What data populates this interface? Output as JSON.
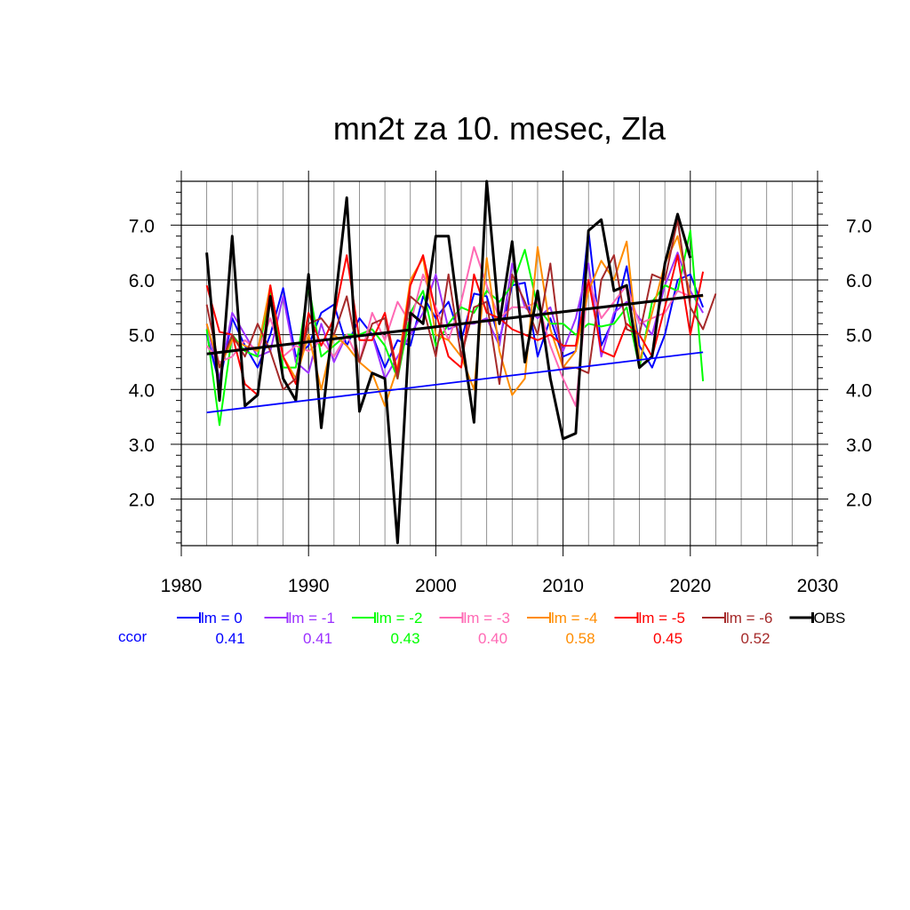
{
  "chart_data": {
    "type": "line",
    "title": "mn2t za 10. mesec, Zla",
    "xlabel": "",
    "ylabel": "",
    "xlim": [
      1980,
      2030
    ],
    "ylim": [
      1.15,
      7.8
    ],
    "xticks": [
      1980,
      1990,
      2000,
      2010,
      2020,
      2030
    ],
    "xtick_labels": [
      "1980",
      "1990",
      "2000",
      "2010",
      "2020",
      "2030"
    ],
    "yticks": [
      2,
      3,
      4,
      5,
      6,
      7
    ],
    "ytick_labels": [
      "2.0",
      "3.0",
      "4.0",
      "5.0",
      "6.0",
      "7.0"
    ],
    "grid": true,
    "ccor_label": "ccor",
    "series": [
      {
        "name": "lm = 0",
        "color": "#0000ff",
        "ccor": "0.41",
        "start": 1982,
        "values": [
          5.0,
          4.1,
          5.3,
          4.8,
          4.4,
          5.0,
          5.85,
          4.6,
          4.8,
          5.4,
          5.55,
          4.8,
          5.3,
          5.0,
          4.4,
          4.9,
          4.8,
          5.7,
          5.3,
          5.6,
          4.9,
          5.75,
          5.7,
          4.9,
          5.9,
          5.95,
          4.6,
          5.3,
          4.6,
          4.7,
          6.9,
          4.8,
          5.3,
          6.25,
          4.8,
          4.4,
          5.0,
          6.0,
          6.1,
          5.5
        ]
      },
      {
        "name": "lm = -1",
        "color": "#9b30ff",
        "ccor": "0.41",
        "start": 1982,
        "values": [
          5.2,
          4.2,
          5.4,
          5.0,
          4.6,
          4.7,
          5.7,
          4.5,
          4.3,
          5.2,
          4.5,
          5.0,
          5.0,
          5.0,
          4.2,
          4.6,
          5.0,
          5.4,
          6.1,
          5.1,
          5.2,
          5.2,
          5.3,
          4.8,
          6.3,
          5.5,
          5.3,
          5.5,
          4.7,
          5.3,
          6.3,
          4.6,
          5.4,
          5.6,
          5.3,
          5.0,
          5.9,
          6.5,
          5.8,
          5.4
        ]
      },
      {
        "name": "lm = -2",
        "color": "#00ff00",
        "ccor": "0.43",
        "start": 1982,
        "values": [
          5.1,
          3.35,
          5.0,
          4.7,
          4.6,
          5.8,
          4.4,
          4.4,
          5.9,
          4.6,
          4.8,
          5.0,
          5.0,
          5.1,
          4.8,
          4.2,
          5.4,
          5.8,
          4.8,
          5.2,
          5.5,
          5.4,
          5.8,
          5.6,
          5.9,
          6.55,
          5.5,
          5.2,
          5.2,
          5.0,
          5.2,
          5.15,
          5.2,
          5.5,
          4.4,
          5.6,
          5.9,
          5.8,
          6.9,
          4.15
        ]
      },
      {
        "name": "lm = -3",
        "color": "#ff69b4",
        "ccor": "0.40",
        "start": 1982,
        "values": [
          4.8,
          4.5,
          4.6,
          4.9,
          4.7,
          5.3,
          4.6,
          4.8,
          4.7,
          4.9,
          4.6,
          5.0,
          4.5,
          5.4,
          4.9,
          5.6,
          5.2,
          6.1,
          5.5,
          4.9,
          5.6,
          6.6,
          5.9,
          5.3,
          5.5,
          5.5,
          5.6,
          4.8,
          4.2,
          3.7,
          6.0,
          5.3,
          5.6,
          5.9,
          5.2,
          5.3,
          5.4,
          5.8,
          5.7,
          5.7
        ]
      },
      {
        "name": "lm = -4",
        "color": "#ff8c00",
        "ccor": "0.58",
        "start": 1982,
        "values": [
          5.2,
          4.4,
          4.9,
          4.8,
          4.7,
          5.9,
          4.6,
          4.2,
          5.0,
          4.0,
          5.0,
          4.8,
          4.5,
          4.3,
          3.7,
          4.4,
          6.0,
          6.4,
          5.0,
          4.9,
          4.6,
          4.0,
          6.4,
          4.7,
          3.9,
          4.2,
          6.6,
          5.1,
          4.4,
          4.7,
          5.8,
          6.35,
          6.0,
          6.7,
          4.5,
          5.4,
          6.3,
          6.8,
          5.7,
          5.7
        ]
      },
      {
        "name": "lm = -5",
        "color": "#ff0000",
        "ccor": "0.45",
        "start": 1982,
        "values": [
          5.9,
          5.05,
          5.0,
          4.1,
          3.9,
          5.9,
          4.6,
          4.1,
          5.4,
          4.8,
          5.3,
          6.45,
          4.9,
          4.9,
          5.4,
          4.3,
          5.9,
          6.45,
          5.4,
          4.6,
          4.4,
          6.1,
          5.4,
          5.3,
          5.1,
          5.0,
          4.9,
          5.0,
          4.8,
          4.8,
          6.0,
          4.7,
          4.6,
          5.2,
          5.0,
          4.6,
          5.5,
          6.45,
          5.0,
          6.15
        ]
      },
      {
        "name": "lm = -6",
        "color": "#a52a2a",
        "ccor": "0.52",
        "start": 1982,
        "values": [
          5.55,
          4.4,
          5.0,
          4.6,
          5.2,
          4.7,
          4.0,
          4.2,
          5.2,
          5.3,
          5.0,
          5.7,
          4.5,
          5.2,
          5.3,
          4.2,
          5.7,
          5.5,
          4.6,
          6.1,
          4.6,
          5.5,
          5.6,
          4.1,
          6.1,
          5.6,
          5.0,
          6.3,
          4.4,
          4.4,
          4.3,
          6.0,
          6.45,
          5.1,
          5.0,
          6.1,
          6.0,
          7.1,
          5.5,
          5.1,
          5.75
        ]
      },
      {
        "name": "OBS",
        "color": "#000000",
        "ccor": "",
        "start": 1982,
        "values": [
          6.5,
          3.8,
          6.8,
          3.7,
          3.9,
          5.7,
          4.2,
          3.8,
          6.1,
          3.3,
          5.4,
          7.5,
          3.6,
          4.3,
          4.2,
          1.2,
          5.4,
          5.2,
          6.8,
          6.8,
          5.0,
          3.4,
          7.8,
          5.2,
          6.7,
          4.5,
          5.8,
          4.2,
          3.1,
          3.2,
          6.9,
          7.1,
          5.8,
          5.9,
          4.4,
          4.6,
          6.3,
          7.2,
          6.4
        ]
      }
    ],
    "trend_lines": [
      {
        "series": "lm = 0",
        "color": "#0000ff",
        "x": [
          1982,
          2021
        ],
        "y": [
          3.58,
          4.68
        ]
      },
      {
        "series": "OBS",
        "color": "#000000",
        "x": [
          1982,
          2021
        ],
        "y": [
          4.65,
          5.72
        ]
      }
    ]
  }
}
